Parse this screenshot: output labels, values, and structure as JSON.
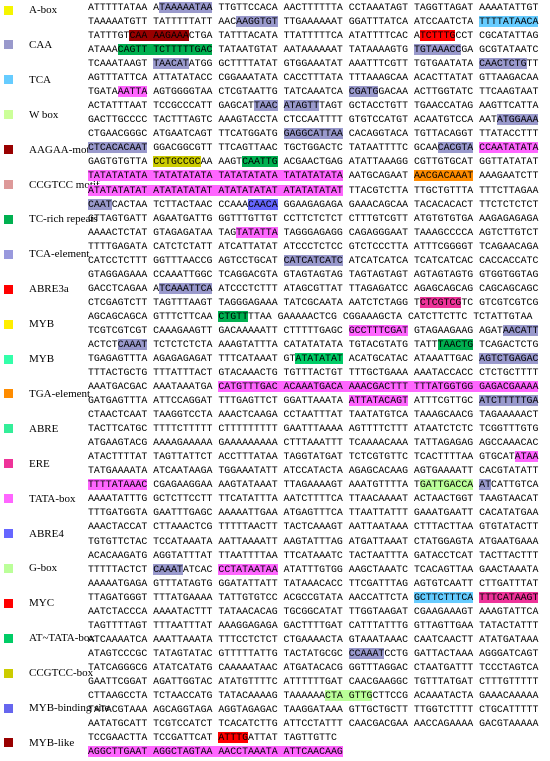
{
  "legend": [
    {
      "label": "A-box",
      "color": "#f5f500"
    },
    {
      "label": "CAA",
      "color": "#9999cc"
    },
    {
      "label": "TCA",
      "color": "#66ccff"
    },
    {
      "label": "W box",
      "color": "#ccff99"
    },
    {
      "label": "AAGAA-motif",
      "color": "#990000"
    },
    {
      "label": "CCGTCC motif",
      "color": "#dd9999"
    },
    {
      "label": "TC-rich repeats",
      "color": "#00b050"
    },
    {
      "label": "TCA-element",
      "color": "#9999dd"
    },
    {
      "label": "ABRE3a",
      "color": "#ff0000"
    },
    {
      "label": "MYB",
      "color": "#ffee00"
    },
    {
      "label": "MYB",
      "color": "#33ffaa"
    },
    {
      "label": "TGA-element",
      "color": "#ff8c00"
    },
    {
      "label": "ABRE",
      "color": "#33ee99"
    },
    {
      "label": "ERE",
      "color": "#ee3399"
    },
    {
      "label": "TATA-box",
      "color": "#ff66ff"
    },
    {
      "label": "ABRE4",
      "color": "#6666ff"
    },
    {
      "label": "G-box",
      "color": "#bbff99"
    },
    {
      "label": "MYC",
      "color": "#ff0000"
    },
    {
      "label": "AT~TATA-box",
      "color": "#00cc66"
    },
    {
      "label": "CCGTCC-box",
      "color": "#cccc00"
    },
    {
      "label": "MYB-binding site",
      "color": "#6666ee"
    },
    {
      "label": "MYB-like",
      "color": "#990000"
    }
  ],
  "sequence": [
    [
      "ATTTTTATAA A",
      {
        "text": "TAAAAATAA",
        "color": "#9999cc"
      },
      " TTGTTCCACA AACTTTTTTA CCTAAATAGT TAGGTTAGAT AAAATATTGT"
    ],
    [
      "TAAAAATGTT TATTTTTATT AAC",
      {
        "text": "AAGGTGT",
        "color": "#9999cc"
      },
      " TTGAAAAAAT GGATTTATCA ATCCAATCTA ",
      {
        "text": "TTTTATAACA",
        "color": "#66ccff"
      }
    ],
    [
      "TATTTGT",
      {
        "text": "CAA AAGAAA",
        "color": "#990000"
      },
      "CTGA TATTTACATA TTATTTTTCA ATATTTTCAC A",
      {
        "text": "TCTTTG",
        "color": "#ff0000"
      },
      "CCT CGCATATTAG"
    ],
    [
      "ATAAA",
      {
        "text": "CAGTT TCTTTTTGAC",
        "color": "#00b050"
      },
      " TATAATGTAT AATAAAAAAT TATAAAAGTG ",
      {
        "text": "TGTAAACC",
        "color": "#9999cc"
      },
      "GA GCGTATAATC"
    ],
    [
      "TCAAATAAGT ",
      {
        "text": "TAACAT",
        "color": "#9999cc"
      },
      "ATGG GCTTTTATAT GTGGAAATAT AAATTTCGTT TGTGAATATA ",
      {
        "text": "CAACTCTG",
        "color": "#9999cc"
      },
      "TT"
    ],
    [
      "AGTTTATTCA ATTATATACC CGGAAATATA CACCTTTATA TTTAAAGCAA ACACTTATAT GTTAAGACAA"
    ],
    [
      "TGATA",
      {
        "text": "AATTA",
        "color": "#ff66ff"
      },
      " AGTGGGGTAA CTCGTAATTG TATCAAATCA ",
      {
        "text": "CGATG",
        "color": "#9999cc"
      },
      "GACAA ACTTGGTATC TTCAAGTAAT"
    ],
    [
      "ACTATTTAAT TCCGCCCATT GAGCAT",
      {
        "text": "TAAC",
        "color": "#9999cc"
      },
      " ",
      {
        "text": "ATAGTT",
        "color": "#9999cc"
      },
      "TAGT GCTACCTGTT TGAACCATAG AAGTTCATTA"
    ],
    [
      "GACTTGCCCC TACTTTAGTC AAAGTACCTA CTCCAATTTT GTGTCCATGT ACAATGTCCA AAT",
      {
        "text": "ATGGAAA",
        "color": "#9999cc"
      }
    ],
    [
      "CTGAACGGGC ATGAATCAGT TTCATGGATG ",
      {
        "text": "GAGGCATTAA",
        "color": "#9999cc"
      },
      " CACAGGTACA TGTTACAGGT TTATACCTTT"
    ],
    [
      {
        "text": "CTCACACAAT",
        "color": "#9999cc"
      },
      " GGACGGCGTT TTCAGTTAAC TGCTGGACTC TATAATTTTC GCAA",
      {
        "text": "CACGTA",
        "color": "#9999cc"
      },
      " ",
      {
        "text": "CCAATATATA",
        "color": "#ff66ff"
      }
    ],
    [
      "GAGTGTGTTA ",
      {
        "text": "CCTGCCGC",
        "color": "#cccc00"
      },
      "AA AAGT",
      {
        "text": "CAATTG",
        "color": "#00b050"
      },
      " ACGAACTGAG ATATTAAAGG CGTTGTGCAT GGTTATATAT"
    ],
    [
      {
        "text": "TATATATATA TATATATATA TATATATATA TATATATATA",
        "color": "#ff66ff"
      },
      " AATGCAGAAT ",
      {
        "text": "AACGACAAAT",
        "color": "#ff8c00"
      },
      " AAAGAATCTT"
    ],
    [
      {
        "text": "ATATATATAT ATATATATAT ATATATATAT ATATATATAT",
        "color": "#ff66ff"
      },
      " TTACGTCTTA TTGCTGTTTA TTTCTTAGAA"
    ],
    [
      {
        "text": "CAAT",
        "color": "#9999cc"
      },
      "CACTAA TCTTACTAAC CCAAA",
      {
        "text": "CAACA",
        "color": "#6666ff"
      },
      " GGAAGAGAGA GAAACAGCAA TACACACACT TTCTCTCTCT"
    ],
    [
      "GTTAGTGATT AGAATGATTG GGTTTGTTGT CCTTCTCTCT CTTTGTCGTT ATGTGTGTGA AAGAGAGAGA"
    ],
    [
      "AAAACTCTAT GTAGAGATAA TAG",
      {
        "text": "TATATTA",
        "color": "#ff66ff"
      },
      " TAGGGAGAGG CAGAGGGAAT TAAAGCCCCA AGTCTTGTCT"
    ],
    [
      "TTTTGAGATA CATCTCTATT ATCATTATAT ATCCCTCTCC GTCTCCCTTA ATTTCGGGGT TCAGAACAGA"
    ],
    [
      "CATCCTCTTT GGTTTAACCG AGTCCTGCAT ",
      {
        "text": "CATCATCATC",
        "color": "#9999cc"
      },
      " ATCATCATCA TCATCATCAC CACCACCATC"
    ],
    [
      "GTAGGAGAAA CCAAATTGGC TCAGGACGTA GTAGTAGTAG TAGTAGTAGT AGTAGTAGTG GTGGTGGTAG"
    ],
    [
      "GACCTCAGAA A",
      {
        "text": "TCAAATTCA",
        "color": "#9999cc"
      },
      " ATCCCTCTTT ATAGCGTTAT TTAGAGATCC AGAGCAGCAG CAGCAGCAGC"
    ],
    [
      "CTCGAGTCTT TAGTTTAAGT TAGGGAGAAA TATCGCAATA AATCTCTAGG T",
      {
        "text": "CTCGTCG",
        "color": "#ee3399"
      },
      "TC GTCGTCGTCG"
    ],
    [
      "AGCAGCAGCA GTTTCTTCAA ",
      {
        "text": "CTGTT",
        "color": "#00b050"
      },
      "TTAA GAAAAACTCG CGGAAAGCTA CATCTTCTTC TCTATTGTAA"
    ],
    [
      "TCGTCGTCGT CAAAGAAGTT GACAAAAATT CTTTTTGAGC ",
      {
        "text": "GCCTTTCGAT",
        "color": "#ff66ff"
      },
      " GTAGAAGAAG AGAT",
      {
        "text": "AACATT",
        "color": "#9999cc"
      }
    ],
    [
      "ACTCT",
      {
        "text": "CAAAT",
        "color": "#9999cc"
      },
      " TCTCTCTCTA AAAGTATTTA CATATATATA TGTACGTATG TATT",
      {
        "text": "TAACTG",
        "color": "#00b050"
      },
      " TCAGACTCTG"
    ],
    [
      "TGAGAGTTTA AGAGAGAGAT TTTCATAAAT GT",
      {
        "text": "ATATATAT",
        "color": "#00cc66"
      },
      " ACATGCATAC ATAAATTGAC ",
      {
        "text": "AGTCTGAGAC",
        "color": "#9999cc"
      }
    ],
    [
      "TTTACTGCTG TTTATTTACT GTACAAACTG TGTTTACTGT TTTGCTGAAA AAATACCACC CTCTGCTTTT"
    ],
    [
      "AAATGACGAC AAATAAATGA ",
      {
        "text": "CATGTTTGAC ACAAATGACA AAACGACTTT TTTATGGTGG GAGACGAAAA",
        "color": "#ff66ff"
      }
    ],
    [
      "GATGAGTTTA ATTCCAGGAT TTTGAGTTCT GGATTAAATA ",
      {
        "text": "ATTATACAGT",
        "color": "#ff66ff"
      },
      " ATTTCGTTGC ",
      {
        "text": "ATCTTTTTGA",
        "color": "#9999cc"
      }
    ],
    [
      "CTAACTCAAT TAAGGTCCTA AAACTCAAGA CCTAATTTAT TAATATGTCA TAAAGCAACG TAGAAAAACT"
    ],
    [
      "TACTTCATGC TTTTCTTTTT CTTTTTTTTT GAATTTAAAA AGTTTTCTTT ATAATCTCTC TCGGTTTGTG"
    ],
    [
      "ATGAAGTACG AAAAGAAAAA GAAAAAAAAA CTTTAAATTT TCAAAACAAA TATTAGAGAG AGCCAAACAC"
    ],
    [
      "ATACTTTTAT TAGTTATTCT ACCTTTATAA TAGGTATGAT TCTCGTGTTC TCACTTTTAA GTGCAT",
      {
        "text": "ATAA",
        "color": "#ff66ff"
      }
    ],
    [
      "TATGAAAATA ATCAATAAGA TGGAAATATT ATCCATACTA AGAGCACAAG AGTGAAAATT CACGTATATT"
    ],
    [
      {
        "text": "TTTTATAAAC",
        "color": "#ff66ff"
      },
      " CGAGAAGGAA AAGTATAAAT TTAGAAAAGT AAATGTTTTA T",
      {
        "text": "GATTGACCA",
        "color": "#bbff99"
      },
      " ",
      {
        "text": "AT",
        "color": "#9999cc"
      },
      "CATTGTCA"
    ],
    [
      "AAAATATTTG GCTCTTCCTT TTCATATTTA AATCTTTTCA TTAACAAAAT ACTAACTGGT TAAGTAACAT"
    ],
    [
      "TTTGATGGTA GAATTTGAGC AAAAATTGAA ATGAGTTTCA TTAATTATTT GAAATGAATT CACATATGAA"
    ],
    [
      "AAACTACCAT CTTAAACTCG TTTTTAACTT TACTCAAAGT AATTAATAAA CTTTACTTAA GTGTATACTT"
    ],
    [
      "TGTGTTCTAC TCCATAAATA AATTAAAATT AAGTATTTAG ATGATTAAAT CTATGGAGTA ATGAATGAAA"
    ],
    [
      "ACACAAGATG AGGTATTTAT TTAATTTTAA TTCATAAATC TACTAATTTA GATACCTCAT TACTTACTTT"
    ],
    [
      "TTTTTACTCT ",
      {
        "text": "CAAAT",
        "color": "#9999cc"
      },
      "ATCAC ",
      {
        "text": "CCTATAATAA",
        "color": "#ff66ff"
      },
      " ATATTTGTGG AAGCTAAATC TCACAGTTAA GAACTAAATA"
    ],
    [
      "AAAAATGAGA GTTTATAGTG GGATATTATT TATAAACACC TTCGATTTAG AGTGTCAATT CTTGATTTAT"
    ],
    [
      "TTAGATGGGT TTTATGAAAA TATTGTGTCC ACGCCGTATA AACCATTCTA ",
      {
        "text": "GCTTCTTTCA",
        "color": "#66ccff"
      },
      " ",
      {
        "text": "TTTCATAAGT",
        "color": "#ee3399"
      }
    ],
    [
      "AATCTACCCA AAAATACTTT TATAACACAG TGCGGCATAT TTGGTAAGAT CGAAGAAAGT AAAGTATTCA"
    ],
    [
      "TAGTTTTAGT TTTAATTTAT AAAGGAGAGA GACTTTTGAT CATTTATTTG GTTAGTTGAA TATACTATTT"
    ],
    [
      "ATCAAAATCA AAATTAAATA TTTCCTCTCT CTGAAAACTA GTAAATAAAC CAATCAACTT ATATGATAAA"
    ],
    [
      "ATAGTCCCGC TATAGTATAC GTTTTTATTG TACTATGCGC ",
      {
        "text": "CCAAAT",
        "color": "#9999cc"
      },
      "CCTG GATTACTAAA AGGGATCAGT"
    ],
    [
      "TATCAGGGCG ATATCATATG CAAAAATAAC ATGATACACG GGTTTAGGAC CTAATGATTT TCCCTAGTCA"
    ],
    [
      "GAATTCGGAT AGATTGGTAC ATATGTTTTC ATTTTTTGAT CAACGAAGGC TGTTTATGAT CTTTGTTTTT"
    ],
    [
      "CTTAAGCCTA TCTAACCATG TATACAAAAG TAAAAAA",
      {
        "text": "CTA GTTG",
        "color": "#bbff99"
      },
      "CTTCCG ACAAATACTA GAAACAAAAA"
    ],
    [
      "TATACGTAAA AGCAGGTAGA AGGTAGAGAC TAAGGATAAA GTTGCTGCTT TTGGTCTTTT CTGCATTTTT"
    ],
    [
      "AATATGCATT TCGTCCATCT TCACATCTTG ATTCCTATTT CAACGACGAA AACCAGAAAA GACGTAAAAA"
    ],
    [
      "TCCGAACTTA TCCGATTCAT ",
      {
        "text": "ATTTG",
        "color": "#ff0000"
      },
      "ATTAT TAGTTGTTC"
    ],
    [
      {
        "text": "AGGCTTGAAT AGGCTAGTAA AACCTAAATA ATTCAACAAG",
        "color": "#ff66ff"
      }
    ]
  ]
}
